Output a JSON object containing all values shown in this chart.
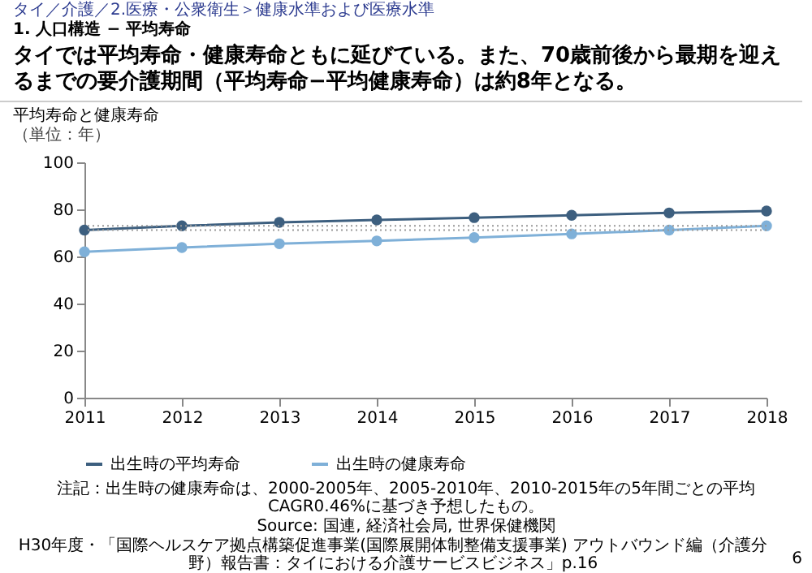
{
  "chart_data": {
    "type": "line",
    "title": "タイでは平均寿命・健康寿命ともに延びている。また、70歳前後から最期を迎えるまでの要介護期間（平均寿命−平均健康寿命）は約8年となる。",
    "subtitle": "平均寿命と健康寿命",
    "ylabel": "（単位：年）",
    "x": [
      2011,
      2012,
      2013,
      2014,
      2015,
      2016,
      2017,
      2018
    ],
    "series": [
      {
        "name": "出生時の平均寿命",
        "color": "#3d5f7f",
        "values": [
          71.2,
          73,
          74.5,
          75.5,
          76.5,
          77.5,
          78.5,
          79.3
        ]
      },
      {
        "name": "出生時の健康寿命",
        "color": "#7fb0d8",
        "values": [
          62,
          63.8,
          65.4,
          66.6,
          68,
          69.6,
          71.2,
          73
        ]
      }
    ],
    "xlim": [
      2011,
      2018
    ],
    "xticks": [
      2011,
      2012,
      2013,
      2014,
      2015,
      2016,
      2017,
      2018
    ],
    "ylim": [
      0,
      100
    ],
    "yticks": [
      0,
      20,
      40,
      60,
      80,
      100
    ],
    "ref_lines": [
      {
        "axis": "y",
        "value": 71.2,
        "color": "#999999",
        "line_style": "dotted"
      },
      {
        "axis": "y",
        "value": 73,
        "color": "#999999",
        "line_style": "dotted"
      }
    ],
    "grid": false,
    "legend": "bottom",
    "marker": "circle",
    "line_style": "solid",
    "annotations": [
      "タイ／介護／2.医療・公衆衛生＞健康水準および医療水準",
      "1. 人口構造 − 平均寿命",
      "注記：出生時の健康寿命は、2000-2005年、2005-2010年、2010-2015年の5年間ごとの平均CAGR0.46%に基づき予想したもの。",
      "Source: 国連, 経済社会局, 世界保健機関",
      "H30年度・「国際ヘルスケア拠点構築促進事業(国際展開体制整備支援事業) アウトバウンド編（介護分野）報告書：タイにおける介護サービスビジネス」p.16",
      "6"
    ]
  }
}
